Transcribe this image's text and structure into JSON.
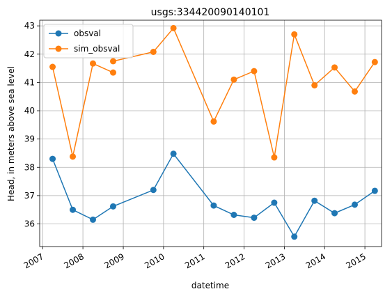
{
  "chart_data": {
    "type": "line",
    "title": "usgs:334420090140101",
    "xlabel": "datetime",
    "ylabel": "Head, in meters above sea level",
    "x_tick_labels": [
      "2007",
      "2008",
      "2009",
      "2010",
      "2011",
      "2012",
      "2013",
      "2014",
      "2015"
    ],
    "y_tick_labels": [
      "36",
      "37",
      "38",
      "39",
      "40",
      "41",
      "42",
      "43"
    ],
    "y_ticks": [
      36,
      37,
      38,
      39,
      40,
      41,
      42,
      43
    ],
    "xlim": [
      "2006-12-05",
      "2015-06-01"
    ],
    "ylim": [
      35.2,
      43.2
    ],
    "grid": true,
    "legend_position": "top-left",
    "series": [
      {
        "name": "obsval",
        "color": "#1f77b4",
        "x": [
          "2007-04-01",
          "2007-10-01",
          "2008-04-01",
          "2008-10-01",
          "2009-10-01",
          "2010-04-01",
          "2011-04-01",
          "2011-10-01",
          "2012-04-01",
          "2012-10-01",
          "2013-04-01",
          "2013-10-01",
          "2014-04-01",
          "2014-10-01",
          "2015-04-01"
        ],
        "y": [
          38.3,
          36.5,
          36.15,
          36.62,
          37.2,
          38.48,
          36.65,
          36.32,
          36.22,
          36.75,
          35.55,
          36.82,
          36.38,
          36.68,
          37.17
        ],
        "segments": [
          [
            0,
            14
          ]
        ]
      },
      {
        "name": "sim_obsval",
        "color": "#ff7f0e",
        "x": [
          "2007-04-01",
          "2007-10-01",
          "2008-04-01",
          "2008-10-01",
          "2008-10-01",
          "2009-10-01",
          "2010-04-01",
          "2011-04-01",
          "2011-10-01",
          "2012-04-01",
          "2012-10-01",
          "2013-04-01",
          "2013-10-01",
          "2014-04-01",
          "2014-10-01",
          "2015-04-01"
        ],
        "y": [
          41.55,
          38.38,
          41.67,
          41.35,
          41.75,
          42.08,
          42.92,
          39.62,
          41.1,
          41.4,
          38.35,
          42.7,
          40.9,
          41.53,
          40.68,
          41.72
        ],
        "segments": [
          [
            0,
            3
          ],
          [
            4,
            15
          ]
        ]
      }
    ]
  }
}
